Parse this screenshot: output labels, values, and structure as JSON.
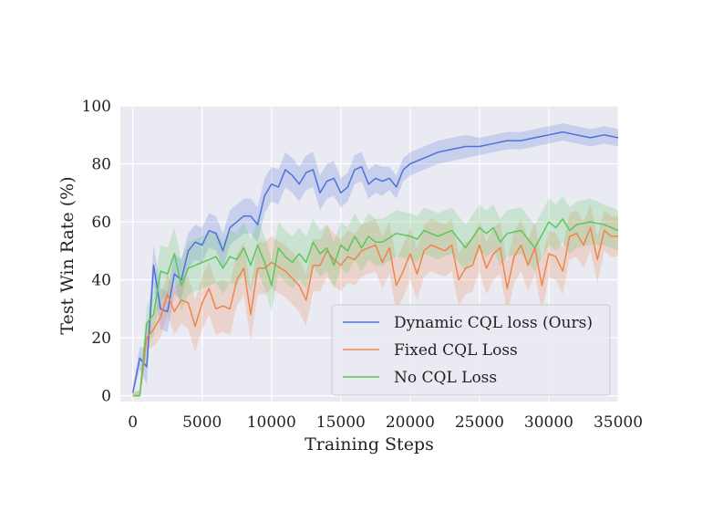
{
  "chart_data": {
    "type": "line",
    "title": "",
    "xlabel": "Training Steps",
    "ylabel": "Test Win Rate (%)",
    "xlim": [
      -900,
      35000
    ],
    "ylim": [
      -2,
      100
    ],
    "xticks": [
      0,
      5000,
      10000,
      15000,
      20000,
      25000,
      30000,
      35000
    ],
    "xtick_labels": [
      "0",
      "5000",
      "10000",
      "15000",
      "20000",
      "25000",
      "30000",
      "35000"
    ],
    "yticks": [
      0,
      20,
      40,
      60,
      80,
      100
    ],
    "ytick_labels": [
      "0",
      "20",
      "40",
      "60",
      "80",
      "100"
    ],
    "grid": true,
    "legend_position": "lower-right",
    "series": [
      {
        "name": "Dynamic CQL loss (Ours)",
        "color": "#4c72d9",
        "x": [
          0,
          500,
          1000,
          1500,
          2000,
          2500,
          3000,
          3500,
          4000,
          4500,
          5000,
          5500,
          6000,
          6500,
          7000,
          7500,
          8000,
          8500,
          9000,
          9500,
          10000,
          10500,
          11000,
          11500,
          12000,
          12500,
          13000,
          13500,
          14000,
          14500,
          15000,
          15500,
          16000,
          16500,
          17000,
          17500,
          18000,
          18500,
          19000,
          19500,
          20000,
          21000,
          22000,
          23000,
          24000,
          25000,
          26000,
          27000,
          28000,
          29000,
          30000,
          31000,
          32000,
          33000,
          34000,
          35000
        ],
        "values": [
          1,
          13,
          10,
          45,
          30,
          29,
          42,
          40,
          50,
          53,
          52,
          57,
          56,
          50,
          58,
          60,
          62,
          62,
          59,
          69,
          73,
          72,
          78,
          76,
          73,
          77,
          78,
          70,
          74,
          75,
          70,
          72,
          78,
          79,
          73,
          75,
          74,
          75,
          72,
          78,
          80,
          82,
          84,
          85,
          86,
          86,
          87,
          88,
          88,
          89,
          90,
          91,
          90,
          89,
          90,
          89
        ],
        "band": [
          2,
          4,
          6,
          7,
          7,
          7,
          7,
          7,
          6,
          6,
          6,
          6,
          6,
          6,
          6,
          6,
          6,
          6,
          6,
          6,
          6,
          6,
          6,
          6,
          6,
          6,
          6,
          6,
          6,
          6,
          5,
          5,
          5,
          5,
          5,
          5,
          5,
          4,
          4,
          4,
          4,
          4,
          4,
          4,
          4,
          3,
          3,
          3,
          3,
          3,
          3,
          3,
          3,
          3,
          3,
          3
        ]
      },
      {
        "name": "Fixed CQL Loss",
        "color": "#ee8549",
        "x": [
          0,
          500,
          1000,
          1500,
          2000,
          2500,
          3000,
          3500,
          4000,
          4500,
          5000,
          5500,
          6000,
          6500,
          7000,
          7500,
          8000,
          8500,
          9000,
          9500,
          10000,
          11000,
          12000,
          12500,
          13000,
          13500,
          14000,
          14500,
          15000,
          15500,
          16000,
          16500,
          17000,
          17500,
          18000,
          18500,
          19000,
          19500,
          20000,
          20500,
          21000,
          21500,
          22000,
          22500,
          23000,
          23500,
          24000,
          24500,
          25000,
          25500,
          26000,
          26500,
          27000,
          27500,
          28000,
          28500,
          29000,
          29500,
          30000,
          30500,
          31000,
          31500,
          32000,
          32500,
          33000,
          33500,
          34000,
          34500,
          35000
        ],
        "values": [
          0,
          0,
          20,
          23,
          27,
          35,
          29,
          33,
          32,
          24,
          32,
          37,
          30,
          31,
          30,
          40,
          44,
          28,
          44,
          44,
          46,
          43,
          38,
          33,
          45,
          45,
          50,
          47,
          45,
          48,
          47,
          50,
          51,
          52,
          46,
          51,
          38,
          43,
          49,
          42,
          50,
          52,
          51,
          50,
          52,
          40,
          44,
          45,
          52,
          44,
          49,
          51,
          37,
          48,
          52,
          45,
          51,
          38,
          49,
          48,
          43,
          55,
          56,
          52,
          58,
          47,
          57,
          55,
          55
        ],
        "band": [
          1,
          2,
          4,
          6,
          7,
          7,
          8,
          8,
          9,
          9,
          9,
          9,
          9,
          9,
          9,
          9,
          9,
          9,
          9,
          9,
          9,
          9,
          9,
          9,
          9,
          9,
          9,
          9,
          9,
          9,
          9,
          9,
          9,
          9,
          9,
          9,
          9,
          9,
          9,
          9,
          9,
          9,
          9,
          9,
          9,
          9,
          9,
          9,
          9,
          9,
          9,
          9,
          9,
          9,
          9,
          9,
          9,
          9,
          8,
          8,
          8,
          8,
          8,
          8,
          8,
          8,
          7,
          7,
          7
        ]
      },
      {
        "name": "No CQL Loss",
        "color": "#5bc75b",
        "x": [
          0,
          500,
          1000,
          1500,
          2000,
          2500,
          3000,
          3500,
          4000,
          4500,
          5000,
          5500,
          6000,
          6500,
          7000,
          7500,
          8000,
          8500,
          9000,
          9500,
          10000,
          10500,
          11000,
          11500,
          12000,
          12500,
          13000,
          13500,
          14000,
          14500,
          15000,
          15500,
          16000,
          16500,
          17000,
          17500,
          18000,
          19000,
          20000,
          20500,
          21000,
          22000,
          23000,
          24000,
          25000,
          25500,
          26000,
          26500,
          27000,
          28000,
          29000,
          30000,
          30500,
          31000,
          31500,
          32000,
          33000,
          34000,
          35000
        ],
        "values": [
          0,
          0,
          25,
          28,
          43,
          42,
          49,
          38,
          44,
          45,
          46,
          47,
          48,
          44,
          48,
          47,
          51,
          45,
          52,
          46,
          38,
          51,
          48,
          46,
          49,
          46,
          53,
          49,
          51,
          45,
          52,
          50,
          55,
          51,
          55,
          53,
          53,
          56,
          55,
          54,
          57,
          55,
          57,
          51,
          58,
          56,
          58,
          53,
          56,
          57,
          51,
          60,
          58,
          61,
          57,
          59,
          60,
          59,
          57
        ],
        "band": [
          1,
          2,
          6,
          8,
          9,
          9,
          9,
          9,
          9,
          9,
          9,
          9,
          9,
          9,
          9,
          9,
          9,
          9,
          9,
          9,
          9,
          9,
          9,
          9,
          9,
          9,
          8,
          8,
          8,
          8,
          8,
          8,
          8,
          8,
          8,
          8,
          8,
          8,
          8,
          8,
          8,
          8,
          8,
          8,
          8,
          8,
          8,
          8,
          8,
          8,
          8,
          8,
          8,
          8,
          8,
          8,
          8,
          7,
          7
        ]
      }
    ]
  }
}
